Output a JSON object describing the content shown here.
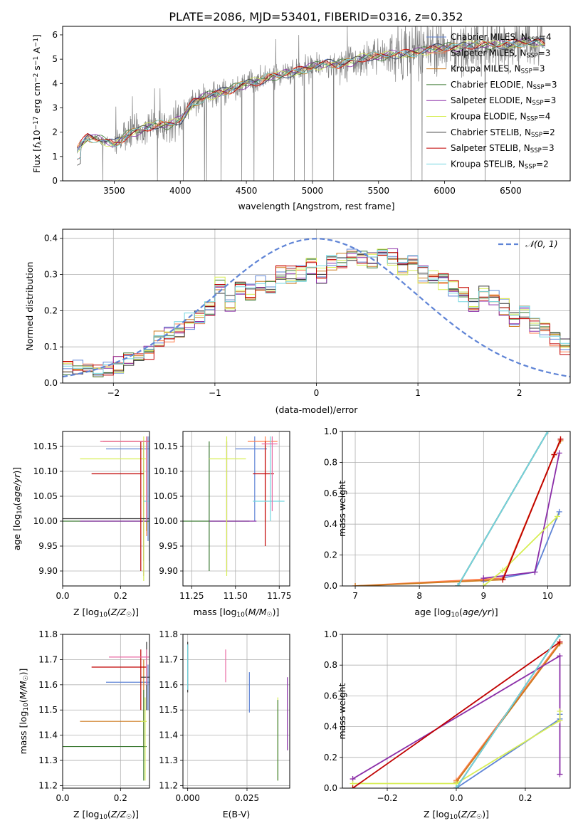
{
  "title": "PLATE=2086, MJD=53401, FIBERID=0316, z=0.352",
  "colors": {
    "Chabrier MILES": "#5f84d6",
    "Salpeter MILES": "#ff7f4f",
    "Kroupa MILES": "#cd7a1e",
    "Chabrier ELODIE": "#3d7a34",
    "Salpeter ELODIE": "#8b2ea8",
    "Kroupa ELODIE": "#d7ee55",
    "Chabrier STELIB": "#3a3a3a",
    "Salpeter STELIB": "#c00000",
    "Kroupa STELIB": "#73d6e0",
    "data": "#808080",
    "normal": "#5f84d6",
    "pink": "#e86aa3"
  },
  "chart_data": [
    {
      "type": "line",
      "panel": "spectrum",
      "xlabel": "wavelength [Angstrom, rest frame]",
      "ylabel": "Flux [f_λ 10^-17 erg cm^-2 s^-1 A^-1]",
      "xlim": [
        3110,
        6950
      ],
      "ylim": [
        0,
        6.35
      ],
      "xticks": [
        "3500",
        "4000",
        "4500",
        "5000",
        "5500",
        "6000",
        "6500"
      ],
      "yticks": [
        "0",
        "1",
        "2",
        "3",
        "4",
        "5",
        "6"
      ],
      "grid": false,
      "legend_position": "top-right",
      "legend": [
        {
          "base": "Chabrier MILES",
          "n": "4"
        },
        {
          "base": "Salpeter MILES",
          "n": "3"
        },
        {
          "base": "Kroupa MILES",
          "n": "3"
        },
        {
          "base": "Chabrier ELODIE",
          "n": "3"
        },
        {
          "base": "Salpeter ELODIE",
          "n": "3"
        },
        {
          "base": "Kroupa ELODIE",
          "n": "4"
        },
        {
          "base": "Chabrier STELIB",
          "n": "2"
        },
        {
          "base": "Salpeter STELIB",
          "n": "3"
        },
        {
          "base": "Kroupa STELIB",
          "n": "2"
        }
      ],
      "model_continuum": {
        "x": [
          3220,
          3300,
          3400,
          3500,
          3600,
          3700,
          3800,
          3900,
          4000,
          4100,
          4200,
          4300,
          4400,
          4500,
          4600,
          4700,
          4800,
          4900,
          5000,
          5100,
          5200,
          5300,
          5400,
          5500,
          5600,
          5700,
          5800,
          5900,
          6000,
          6100,
          6200,
          6300,
          6400,
          6500,
          6600,
          6700,
          6760
        ],
        "y": [
          1.3,
          1.8,
          1.7,
          1.5,
          1.9,
          2.1,
          2.3,
          2.3,
          2.5,
          3.2,
          3.5,
          3.6,
          3.8,
          4.0,
          4.1,
          4.3,
          4.4,
          4.5,
          4.7,
          4.8,
          4.8,
          4.9,
          5.1,
          5.1,
          5.2,
          5.2,
          5.3,
          5.4,
          5.5,
          5.5,
          5.6,
          5.6,
          5.6,
          5.6,
          5.7,
          5.7,
          5.6
        ]
      }
    },
    {
      "type": "histogram",
      "panel": "residuals",
      "xlabel": "(data-model)/error",
      "ylabel": "Normed distribution",
      "xlim": [
        -2.5,
        2.5
      ],
      "ylim": [
        0,
        0.425
      ],
      "xticks": [
        "−2",
        "−1",
        "0",
        "1",
        "2"
      ],
      "yticks": [
        "0.0",
        "0.1",
        "0.2",
        "0.3",
        "0.4"
      ],
      "grid": true,
      "bin_width": 0.1,
      "bin_start": -2.5,
      "reference_values": [
        0.04,
        0.04,
        0.03,
        0.03,
        0.04,
        0.05,
        0.06,
        0.07,
        0.09,
        0.12,
        0.13,
        0.15,
        0.17,
        0.18,
        0.21,
        0.27,
        0.22,
        0.26,
        0.25,
        0.28,
        0.26,
        0.3,
        0.3,
        0.3,
        0.32,
        0.3,
        0.33,
        0.34,
        0.36,
        0.35,
        0.34,
        0.36,
        0.35,
        0.32,
        0.33,
        0.3,
        0.3,
        0.28,
        0.26,
        0.24,
        0.21,
        0.25,
        0.24,
        0.21,
        0.18,
        0.19,
        0.16,
        0.15,
        0.12,
        0.1,
        0.1,
        0.08,
        0.07,
        0.06,
        0.05,
        0.04
      ],
      "legend": {
        "label": "𝒩(0, 1)",
        "position": "top-right"
      }
    },
    {
      "type": "scatter",
      "panel": "age vs Z",
      "xlabel": "Z [log10(Z/Z☉)]",
      "ylabel": "age [log10(age/yr)]",
      "xlim": [
        0.0,
        0.3
      ],
      "ylim": [
        9.87,
        10.18
      ],
      "xticks": [
        "0.0",
        "0.2"
      ],
      "yticks": [
        "9.90",
        "9.95",
        "10.00",
        "10.05",
        "10.10",
        "10.15"
      ],
      "grid": true,
      "points": [
        {
          "series": "Chabrier MILES",
          "x": 0.295,
          "y": 10.145,
          "xerr": [
            0.15,
            0.3
          ],
          "yerr": [
            9.96,
            10.17
          ]
        },
        {
          "series": "Salpeter MILES",
          "x": 0.29,
          "y": 10.16,
          "xerr": [
            0.13,
            0.3
          ],
          "yerr": [
            9.97,
            10.17
          ]
        },
        {
          "series": "Kroupa MILES",
          "x": 0.29,
          "y": 10.16,
          "xerr": [
            0.14,
            0.3
          ],
          "yerr": [
            9.98,
            10.17
          ]
        },
        {
          "series": "Chabrier ELODIE",
          "x": 0.28,
          "y": 10.0,
          "xerr": [
            0.0,
            0.3
          ],
          "yerr": [
            9.92,
            10.16
          ]
        },
        {
          "series": "Salpeter ELODIE",
          "x": 0.28,
          "y": 10.0,
          "xerr": [
            0.06,
            0.29
          ],
          "yerr": [
            9.89,
            10.16
          ]
        },
        {
          "series": "Kroupa ELODIE",
          "x": 0.28,
          "y": 10.125,
          "xerr": [
            0.06,
            0.29
          ],
          "yerr": [
            9.88,
            10.17
          ]
        },
        {
          "series": "Chabrier STELIB",
          "x": 0.3,
          "y": 10.005,
          "xerr": [
            0.0,
            0.3
          ],
          "yerr": [
            9.92,
            10.17
          ]
        },
        {
          "series": "Salpeter STELIB",
          "x": 0.27,
          "y": 10.095,
          "xerr": [
            0.1,
            0.28
          ],
          "yerr": [
            9.9,
            10.16
          ]
        },
        {
          "series": "Kroupa STELIB",
          "x": 0.3,
          "y": 10.04,
          "xerr": [
            0.28,
            0.3
          ],
          "yerr": [
            9.9,
            10.17
          ]
        },
        {
          "series": "pink",
          "x": 0.29,
          "y": 10.16,
          "xerr": [
            0.13,
            0.3
          ],
          "yerr": [
            10.0,
            10.17
          ]
        }
      ]
    },
    {
      "type": "scatter",
      "panel": "age vs mass",
      "xlabel": "mass [log10(M/M☉)]",
      "ylabel": "",
      "xlim": [
        11.2,
        11.81
      ],
      "ylim": [
        9.87,
        10.18
      ],
      "xticks": [
        "11.25",
        "11.50",
        "11.75"
      ],
      "yticks": [
        "9.90",
        "9.95",
        "10.00",
        "10.05",
        "10.10",
        "10.15"
      ],
      "grid": true,
      "points": [
        {
          "series": "Chabrier MILES",
          "x": 11.61,
          "y": 10.145,
          "xerr": [
            11.5,
            11.68
          ],
          "yerr": [
            10.0,
            10.17
          ]
        },
        {
          "series": "Salpeter MILES",
          "x": 11.67,
          "y": 10.16,
          "xerr": [
            11.57,
            11.74
          ],
          "yerr": [
            10.0,
            10.17
          ]
        },
        {
          "series": "Chabrier ELODIE",
          "x": 11.35,
          "y": 10.0,
          "xerr": [
            11.2,
            11.58
          ],
          "yerr": [
            9.9,
            10.16
          ]
        },
        {
          "series": "Salpeter ELODIE",
          "x": 11.45,
          "y": 10.0,
          "xerr": [
            11.35,
            11.62
          ],
          "yerr": [
            9.9,
            10.16
          ]
        },
        {
          "series": "Kroupa ELODIE",
          "x": 11.45,
          "y": 10.125,
          "xerr": [
            11.35,
            11.56
          ],
          "yerr": [
            9.89,
            10.17
          ]
        },
        {
          "series": "Salpeter STELIB",
          "x": 11.67,
          "y": 10.095,
          "xerr": [
            11.6,
            11.72
          ],
          "yerr": [
            9.95,
            10.16
          ]
        },
        {
          "series": "Kroupa STELIB",
          "x": 11.7,
          "y": 10.04,
          "xerr": [
            11.6,
            11.78
          ],
          "yerr": [
            10.0,
            10.17
          ]
        },
        {
          "series": "pink",
          "x": 11.71,
          "y": 10.155,
          "xerr": [
            11.65,
            11.74
          ],
          "yerr": [
            10.02,
            10.17
          ]
        }
      ]
    },
    {
      "type": "line",
      "panel": "cumulative mass weight vs age",
      "xlabel": "age [log10(age/yr)]",
      "ylabel": "mass weight",
      "xlim": [
        6.8,
        10.35
      ],
      "ylim": [
        0.0,
        1.0
      ],
      "xticks": [
        "7",
        "8",
        "9",
        "10"
      ],
      "yticks": [
        "0.0",
        "0.2",
        "0.4",
        "0.6",
        "0.8",
        "1.0"
      ],
      "grid": true,
      "series": [
        {
          "name": "Chabrier MILES",
          "x": [
            9.0,
            9.8,
            10.18
          ],
          "y": [
            0.03,
            0.09,
            0.48
          ]
        },
        {
          "name": "Salpeter MILES",
          "x": [
            7.0,
            9.3,
            10.1,
            10.2
          ],
          "y": [
            0.0,
            0.05,
            0.85,
            0.95
          ]
        },
        {
          "name": "Kroupa MILES",
          "x": [
            7.0,
            9.3,
            10.1,
            10.2
          ],
          "y": [
            0.0,
            0.04,
            0.85,
            0.94
          ]
        },
        {
          "name": "Chabrier ELODIE",
          "x": [
            8.6,
            10.0
          ],
          "y": [
            0.0,
            1.0
          ]
        },
        {
          "name": "Salpeter ELODIE",
          "x": [
            9.0,
            9.8,
            10.18
          ],
          "y": [
            0.05,
            0.09,
            0.86
          ]
        },
        {
          "name": "Kroupa ELODIE",
          "x": [
            9.0,
            9.3,
            10.15
          ],
          "y": [
            0.0,
            0.1,
            0.45
          ]
        },
        {
          "name": "Chabrier STELIB",
          "x": [
            8.6,
            10.0
          ],
          "y": [
            0.0,
            1.0
          ]
        },
        {
          "name": "Salpeter STELIB",
          "x": [
            9.3,
            10.1,
            10.2
          ],
          "y": [
            0.04,
            0.85,
            0.95
          ]
        },
        {
          "name": "Kroupa STELIB",
          "x": [
            8.6,
            10.0
          ],
          "y": [
            0.0,
            1.0
          ]
        }
      ]
    },
    {
      "type": "scatter",
      "panel": "mass vs Z",
      "xlabel": "Z [log10(Z/Z☉)]",
      "ylabel": "mass [log10(M/M☉)]",
      "xlim": [
        0.0,
        0.3
      ],
      "ylim": [
        11.19,
        11.8
      ],
      "xticks": [
        "0.0",
        "0.2"
      ],
      "yticks": [
        "11.2",
        "11.3",
        "11.4",
        "11.5",
        "11.6",
        "11.7",
        "11.8"
      ],
      "grid": true,
      "points": [
        {
          "series": "Chabrier MILES",
          "x": 0.295,
          "y": 11.61,
          "xerr": [
            0.15,
            0.3
          ],
          "yerr": [
            11.5,
            11.68
          ]
        },
        {
          "series": "Kroupa MILES",
          "x": 0.28,
          "y": 11.455,
          "xerr": [
            0.06,
            0.29
          ],
          "yerr": [
            11.35,
            11.7
          ]
        },
        {
          "series": "Chabrier ELODIE",
          "x": 0.28,
          "y": 11.355,
          "xerr": [
            0.0,
            0.29
          ],
          "yerr": [
            11.22,
            11.58
          ]
        },
        {
          "series": "Kroupa ELODIE",
          "x": 0.285,
          "y": 11.455,
          "xerr": [
            0.27,
            0.29
          ],
          "yerr": [
            11.22,
            11.55
          ]
        },
        {
          "series": "Chabrier STELIB",
          "x": 0.29,
          "y": 11.63,
          "xerr": [
            0.27,
            0.3
          ],
          "yerr": [
            11.5,
            11.77
          ]
        },
        {
          "series": "Salpeter STELIB",
          "x": 0.27,
          "y": 11.67,
          "xerr": [
            0.1,
            0.29
          ],
          "yerr": [
            11.5,
            11.74
          ]
        },
        {
          "series": "pink",
          "x": 0.29,
          "y": 11.71,
          "xerr": [
            0.16,
            0.3
          ],
          "yerr": [
            11.6,
            11.74
          ]
        }
      ]
    },
    {
      "type": "scatter",
      "panel": "mass vs E(B-V)",
      "xlabel": "E(B-V)",
      "ylabel": "",
      "xlim": [
        -0.002,
        0.043
      ],
      "ylim": [
        11.19,
        11.8
      ],
      "xticks": [
        "0.000",
        "0.025"
      ],
      "yticks": [
        "11.2",
        "11.3",
        "11.4",
        "11.5",
        "11.6",
        "11.7",
        "11.8"
      ],
      "grid": true,
      "points": [
        {
          "series": "Chabrier STELIB",
          "x": 0.0,
          "y": 11.68,
          "yerr": [
            11.57,
            11.77
          ]
        },
        {
          "series": "Kroupa STELIB",
          "x": 0.0,
          "y": 11.68,
          "yerr": [
            11.58,
            11.76
          ]
        },
        {
          "series": "pink",
          "x": 0.016,
          "y": 11.68,
          "yerr": [
            11.61,
            11.74
          ]
        },
        {
          "series": "Chabrier MILES",
          "x": 0.026,
          "y": 11.57,
          "yerr": [
            11.49,
            11.65
          ]
        },
        {
          "series": "Kroupa ELODIE",
          "x": 0.038,
          "y": 11.45,
          "yerr": [
            11.22,
            11.55
          ]
        },
        {
          "series": "Chabrier ELODIE",
          "x": 0.038,
          "y": 11.4,
          "yerr": [
            11.22,
            11.54
          ]
        },
        {
          "series": "Salpeter ELODIE",
          "x": 0.042,
          "y": 11.48,
          "yerr": [
            11.34,
            11.63
          ]
        }
      ]
    },
    {
      "type": "line",
      "panel": "cumulative mass weight vs Z",
      "xlabel": "Z [log10(Z/Z☉)]",
      "ylabel": "mass weight",
      "xlim": [
        -0.33,
        0.33
      ],
      "ylim": [
        0.0,
        1.0
      ],
      "xticks": [
        "−0.2",
        "0.0",
        "0.2"
      ],
      "yticks": [
        "0.0",
        "0.2",
        "0.4",
        "0.6",
        "0.8",
        "1.0"
      ],
      "grid": true,
      "series": [
        {
          "name": "Chabrier MILES",
          "x": [
            0.0,
            0.3,
            0.3
          ],
          "y": [
            0.0,
            0.45,
            0.48
          ]
        },
        {
          "name": "Salpeter MILES",
          "x": [
            0.0,
            0.3
          ],
          "y": [
            0.05,
            0.95
          ]
        },
        {
          "name": "Kroupa MILES",
          "x": [
            0.0,
            0.3
          ],
          "y": [
            0.04,
            0.94
          ]
        },
        {
          "name": "Chabrier ELODIE",
          "x": [
            0.0,
            0.3
          ],
          "y": [
            0.0,
            1.0
          ]
        },
        {
          "name": "Salpeter ELODIE",
          "x": [
            -0.3,
            0.3,
            0.3
          ],
          "y": [
            0.06,
            0.86,
            0.09
          ]
        },
        {
          "name": "Kroupa ELODIE",
          "x": [
            -0.3,
            0.0,
            0.3,
            0.3
          ],
          "y": [
            0.03,
            0.03,
            0.44,
            0.5
          ]
        },
        {
          "name": "Chabrier STELIB",
          "x": [
            0.0,
            0.3
          ],
          "y": [
            0.0,
            1.0
          ]
        },
        {
          "name": "Salpeter STELIB",
          "x": [
            -0.3,
            0.3
          ],
          "y": [
            0.0,
            0.95
          ]
        },
        {
          "name": "Kroupa STELIB",
          "x": [
            0.0,
            0.3
          ],
          "y": [
            0.0,
            1.0
          ]
        }
      ]
    }
  ]
}
